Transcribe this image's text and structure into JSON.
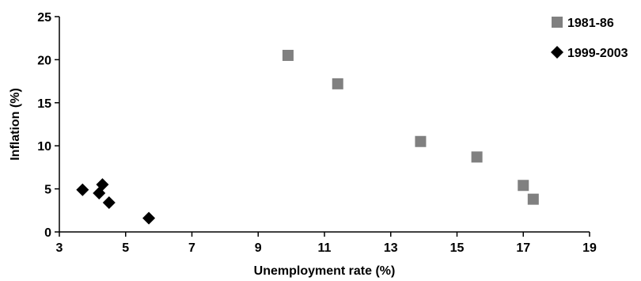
{
  "chart_data": {
    "type": "scatter",
    "title": "",
    "xlabel": "Unemployment rate (%)",
    "ylabel": "Inflation (%)",
    "xlim": [
      3,
      19
    ],
    "ylim": [
      0,
      25
    ],
    "xticks": [
      3,
      5,
      7,
      9,
      11,
      13,
      15,
      17,
      19
    ],
    "yticks": [
      0,
      5,
      10,
      15,
      20,
      25
    ],
    "grid": false,
    "legend_position": "top-right",
    "series": [
      {
        "name": "1981-86",
        "marker": "square",
        "color": "#808080",
        "points": [
          {
            "x": 9.9,
            "y": 20.5
          },
          {
            "x": 11.4,
            "y": 17.2
          },
          {
            "x": 13.9,
            "y": 10.5
          },
          {
            "x": 15.6,
            "y": 8.7
          },
          {
            "x": 17.0,
            "y": 5.4
          },
          {
            "x": 17.3,
            "y": 3.8
          }
        ]
      },
      {
        "name": "1999-2003",
        "marker": "diamond",
        "color": "#000000",
        "points": [
          {
            "x": 3.7,
            "y": 4.9
          },
          {
            "x": 4.3,
            "y": 5.5
          },
          {
            "x": 4.2,
            "y": 4.5
          },
          {
            "x": 4.5,
            "y": 3.4
          },
          {
            "x": 5.7,
            "y": 1.6
          }
        ]
      }
    ]
  }
}
